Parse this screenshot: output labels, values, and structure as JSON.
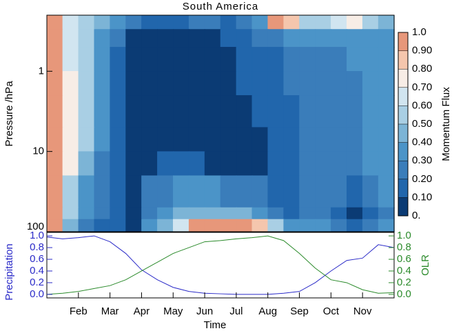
{
  "chart_data": [
    {
      "type": "heatmap",
      "title": "South America",
      "ylabel": "Pressure /hPa",
      "xlim": [
        1,
        12
      ],
      "x_bins": [
        1,
        1.5,
        2,
        2.5,
        3,
        3.5,
        4,
        4.5,
        5,
        5.5,
        6,
        6.5,
        7,
        7.5,
        8,
        8.5,
        9,
        9.5,
        10,
        10.5,
        11,
        11.5,
        12
      ],
      "y_bins": [
        0.2,
        0.3,
        0.5,
        1,
        2,
        5,
        10,
        20,
        50,
        70,
        100
      ],
      "ylim": [
        100,
        0.2
      ],
      "log_scale": true,
      "yticks": [
        1,
        10,
        100
      ],
      "z": [
        [
          0.9,
          0.6,
          0.5,
          0.4,
          0.3,
          0.2,
          0.1,
          0.1,
          0.15,
          0.2,
          0.2,
          0.15,
          0.2,
          0.3,
          0.9,
          0.85,
          0.5,
          0.5,
          0.6,
          0.7,
          0.5,
          0.4
        ],
        [
          0.95,
          0.6,
          0.5,
          0.35,
          0.2,
          0.05,
          0.05,
          0.05,
          0.05,
          0.05,
          0.05,
          0.15,
          0.15,
          0.2,
          0.25,
          0.3,
          0.3,
          0.3,
          0.3,
          0.3,
          0.35,
          0.35
        ],
        [
          0.95,
          0.6,
          0.5,
          0.3,
          0.15,
          0.05,
          0.05,
          0.05,
          0.05,
          0.05,
          0.05,
          0.05,
          0.15,
          0.15,
          0.15,
          0.25,
          0.25,
          0.25,
          0.25,
          0.3,
          0.35,
          0.35
        ],
        [
          0.95,
          0.7,
          0.55,
          0.3,
          0.15,
          0.05,
          0.05,
          0.05,
          0.05,
          0.05,
          0.05,
          0.05,
          0.15,
          0.15,
          0.15,
          0.2,
          0.25,
          0.25,
          0.25,
          0.25,
          0.3,
          0.35
        ],
        [
          0.95,
          0.75,
          0.55,
          0.3,
          0.15,
          0.05,
          0.05,
          0.05,
          0.05,
          0.05,
          0.05,
          0.05,
          0.05,
          0.15,
          0.15,
          0.15,
          0.25,
          0.25,
          0.25,
          0.25,
          0.3,
          0.35
        ],
        [
          0.95,
          0.75,
          0.5,
          0.3,
          0.15,
          0.05,
          0.05,
          0.05,
          0.05,
          0.05,
          0.05,
          0.05,
          0.05,
          0.05,
          0.15,
          0.15,
          0.25,
          0.25,
          0.25,
          0.25,
          0.3,
          0.35
        ],
        [
          0.95,
          0.7,
          0.45,
          0.25,
          0.15,
          0.05,
          0.05,
          0.15,
          0.15,
          0.15,
          0.05,
          0.05,
          0.05,
          0.05,
          0.15,
          0.15,
          0.2,
          0.25,
          0.25,
          0.25,
          0.3,
          0.35
        ],
        [
          0.9,
          0.55,
          0.35,
          0.25,
          0.15,
          0.05,
          0.2,
          0.25,
          0.3,
          0.3,
          0.3,
          0.25,
          0.25,
          0.2,
          0.15,
          0.15,
          0.2,
          0.2,
          0.2,
          0.15,
          0.2,
          0.3
        ],
        [
          0.9,
          0.5,
          0.3,
          0.2,
          0.1,
          0.05,
          0.25,
          0.35,
          0.4,
          0.45,
          0.45,
          0.4,
          0.4,
          0.35,
          0.2,
          0.15,
          0.2,
          0.2,
          0.15,
          0.05,
          0.15,
          0.25
        ],
        [
          0.9,
          0.4,
          0.25,
          0.15,
          0.1,
          0.05,
          0.3,
          0.45,
          0.6,
          0.9,
          0.95,
          0.9,
          0.9,
          0.85,
          0.5,
          0.3,
          0.3,
          0.3,
          0.2,
          0.1,
          0.2,
          0.3
        ]
      ],
      "colorbar": {
        "label": "Momentum Flux",
        "ticks": [
          {
            "value": 1.0,
            "label": "1.0"
          },
          {
            "value": 0.9,
            "label": "0.90"
          },
          {
            "value": 0.8,
            "label": "0.80"
          },
          {
            "value": 0.7,
            "label": "0.70"
          },
          {
            "value": 0.6,
            "label": "0.60"
          },
          {
            "value": 0.5,
            "label": "0.50"
          },
          {
            "value": 0.4,
            "label": "0.40"
          },
          {
            "value": 0.3,
            "label": "0.30"
          },
          {
            "value": 0.2,
            "label": "0.20"
          },
          {
            "value": 0.1,
            "label": "0.10"
          },
          {
            "value": 0,
            "label": "0."
          }
        ],
        "colors": [
          "#0b3b74",
          "#2166ac",
          "#3a7dba",
          "#4b94c8",
          "#7cb4d6",
          "#a9cfe4",
          "#d1e5f0",
          "#f7ede6",
          "#f5c6ad",
          "#e7977a",
          "#cc5147",
          "#8c0a25"
        ]
      }
    },
    {
      "type": "line",
      "xlabel": "Time",
      "xlim": [
        1,
        12
      ],
      "xticks": [
        {
          "value": 2,
          "label": "Feb"
        },
        {
          "value": 3,
          "label": "Mar"
        },
        {
          "value": 4,
          "label": "Apr"
        },
        {
          "value": 5,
          "label": "May"
        },
        {
          "value": 6,
          "label": "Jun"
        },
        {
          "value": 7,
          "label": "Jul"
        },
        {
          "value": 8,
          "label": "Aug"
        },
        {
          "value": 9,
          "label": "Sep"
        },
        {
          "value": 10,
          "label": "Oct"
        },
        {
          "value": 11,
          "label": "Nov"
        }
      ],
      "x": [
        1,
        1.5,
        2,
        2.5,
        3,
        3.5,
        4,
        4.5,
        5,
        5.5,
        6,
        6.5,
        7,
        7.5,
        8,
        8.5,
        9,
        9.5,
        10,
        10.5,
        11,
        11.5,
        12
      ],
      "series": [
        {
          "name": "Precipitation",
          "color": "#2a2ac8",
          "axis": "y",
          "values": [
            0.98,
            0.95,
            0.97,
            1.0,
            0.9,
            0.7,
            0.42,
            0.25,
            0.12,
            0.05,
            0.02,
            0.01,
            0,
            0,
            0,
            0.02,
            0.05,
            0.2,
            0.4,
            0.58,
            0.62,
            0.85,
            0.8
          ]
        },
        {
          "name": "OLR",
          "color": "#2a8a2a",
          "axis": "y2",
          "values": [
            0,
            0.02,
            0.05,
            0.1,
            0.15,
            0.25,
            0.4,
            0.55,
            0.7,
            0.8,
            0.9,
            0.92,
            0.95,
            0.97,
            1.0,
            0.92,
            0.7,
            0.45,
            0.25,
            0.2,
            0.08,
            0.02,
            0.03
          ]
        }
      ],
      "ylim": [
        -0.06,
        1.06
      ],
      "yticks": [
        {
          "value": 0,
          "label": "0.0"
        },
        {
          "value": 0.2,
          "label": "0.2"
        },
        {
          "value": 0.4,
          "label": "0.4"
        },
        {
          "value": 0.6,
          "label": "0.6"
        },
        {
          "value": 0.8,
          "label": "0.8"
        },
        {
          "value": 1,
          "label": "1.0"
        }
      ],
      "y2lim": [
        -0.06,
        1.06
      ],
      "y2ticks": [
        {
          "value": 0,
          "label": "0.0"
        },
        {
          "value": 0.2,
          "label": "0.2"
        },
        {
          "value": 0.4,
          "label": "0.4"
        },
        {
          "value": 0.6,
          "label": "0.6"
        },
        {
          "value": 0.8,
          "label": "0.8"
        },
        {
          "value": 1,
          "label": "1.0"
        }
      ]
    }
  ]
}
